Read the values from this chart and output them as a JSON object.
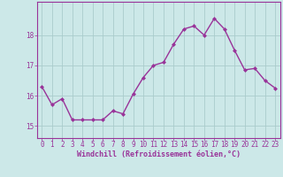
{
  "x": [
    0,
    1,
    2,
    3,
    4,
    5,
    6,
    7,
    8,
    9,
    10,
    11,
    12,
    13,
    14,
    15,
    16,
    17,
    18,
    19,
    20,
    21,
    22,
    23
  ],
  "y": [
    16.3,
    15.7,
    15.9,
    15.2,
    15.2,
    15.2,
    15.2,
    15.5,
    15.4,
    16.05,
    16.6,
    17.0,
    17.1,
    17.7,
    18.2,
    18.3,
    18.0,
    18.55,
    18.2,
    17.5,
    16.85,
    16.9,
    16.5,
    16.25
  ],
  "line_color": "#993399",
  "marker": "D",
  "marker_size": 2.0,
  "line_width": 1.0,
  "background_color": "#cce8e8",
  "grid_color": "#aacccc",
  "xlabel": "Windchill (Refroidissement éolien,°C)",
  "xlabel_color": "#993399",
  "tick_color": "#993399",
  "spine_color": "#993399",
  "yticks": [
    15,
    16,
    17,
    18
  ],
  "xticks": [
    0,
    1,
    2,
    3,
    4,
    5,
    6,
    7,
    8,
    9,
    10,
    11,
    12,
    13,
    14,
    15,
    16,
    17,
    18,
    19,
    20,
    21,
    22,
    23
  ],
  "ylim": [
    14.6,
    19.1
  ],
  "xlim": [
    -0.5,
    23.5
  ],
  "tick_fontsize": 5.5,
  "xlabel_fontsize": 6.0
}
